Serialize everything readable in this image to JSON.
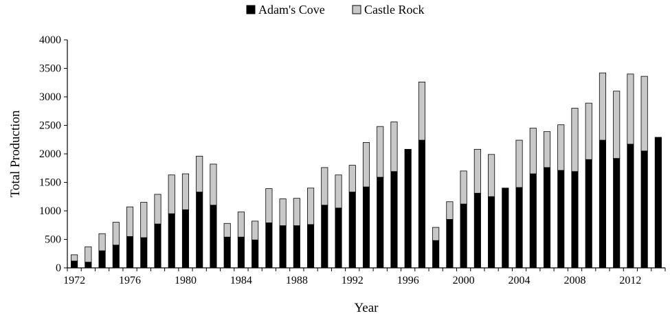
{
  "chart_data": {
    "type": "bar",
    "stacked": true,
    "xlabel": "Year",
    "ylabel": "Total Production",
    "ylim": [
      0,
      4000
    ],
    "y_ticks": [
      0,
      500,
      1000,
      1500,
      2000,
      2500,
      3000,
      3500,
      4000
    ],
    "x_tick_labels": [
      "1972",
      "1976",
      "1980",
      "1984",
      "1988",
      "1992",
      "1996",
      "2000",
      "2004",
      "2008",
      "2012"
    ],
    "legend_position": "top-center",
    "grid": false,
    "categories": [
      "1972",
      "1973",
      "1974",
      "1975",
      "1976",
      "1977",
      "1978",
      "1979",
      "1980",
      "1981",
      "1982",
      "1983",
      "1984",
      "1985",
      "1986",
      "1987",
      "1988",
      "1989",
      "1990",
      "1991",
      "1992",
      "1993",
      "1994",
      "1995",
      "1996",
      "1997",
      "1998",
      "1999",
      "2000",
      "2001",
      "2002",
      "2003",
      "2004",
      "2005",
      "2006",
      "2007",
      "2008",
      "2009",
      "2010",
      "2011",
      "2012",
      "2013",
      "2014"
    ],
    "series": [
      {
        "name": "Adam's Cove",
        "color": "#000000",
        "values": [
          120,
          100,
          300,
          400,
          550,
          530,
          770,
          950,
          1020,
          1330,
          1100,
          540,
          540,
          490,
          790,
          740,
          740,
          760,
          1100,
          1050,
          1330,
          1420,
          1590,
          1690,
          2080,
          2240,
          480,
          850,
          1120,
          1310,
          1250,
          1400,
          1410,
          1650,
          1760,
          1710,
          1690,
          1900,
          2240,
          1920,
          2170,
          2050,
          2290
        ]
      },
      {
        "name": "Castle Rock",
        "color": "#c8c8c8",
        "values": [
          110,
          270,
          300,
          400,
          520,
          620,
          520,
          680,
          630,
          630,
          720,
          240,
          440,
          330,
          600,
          470,
          480,
          640,
          660,
          580,
          470,
          780,
          890,
          870,
          0,
          1020,
          230,
          310,
          580,
          770,
          740,
          0,
          830,
          800,
          630,
          800,
          1110,
          990,
          1180,
          1180,
          1230,
          1310,
          0
        ]
      }
    ]
  }
}
